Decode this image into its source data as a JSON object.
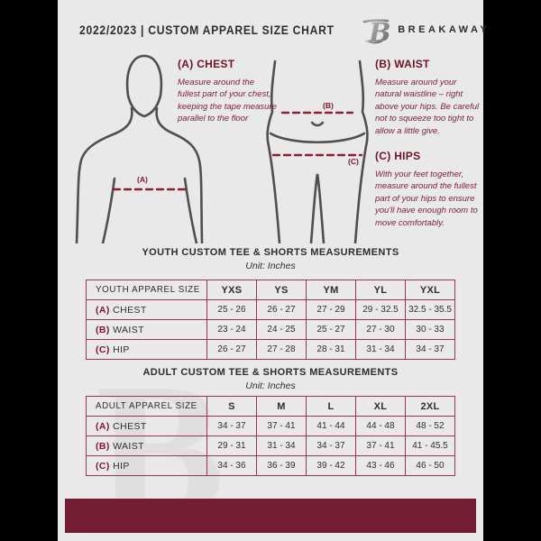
{
  "colors": {
    "canvas_bg": "#000000",
    "page_bg": "#e9e9e9",
    "maroon_bar": "#741e35",
    "maroon_text": "#701228",
    "table_border": "#95364c",
    "ink": "#2d2d2d",
    "figure_stroke": "#4f4f4f"
  },
  "header": {
    "title": "2022/2023  |  CUSTOM APPAREL SIZE CHART",
    "brand": "BREAKAWAY",
    "logo_icon": "breakaway-b-monogram"
  },
  "measure_guide": {
    "chest": {
      "heading": "(A) CHEST",
      "marker": "(A)",
      "body": "Measure around the fullest part of your chest, keeping the tape measure parallel to the floor"
    },
    "waist": {
      "heading": "(B) WAIST",
      "marker": "(B)",
      "body": "Measure around your natural waistline – right above your hips. Be careful not to squeeze too tight to allow a little give."
    },
    "hips": {
      "heading": "(C) HIPS",
      "marker": "(C)",
      "body": "With your feet together, measure around the fullest part of your hips to ensure you'll have enough room to move comfortably."
    }
  },
  "youth_table": {
    "title": "YOUTH CUSTOM TEE & SHORTS MEASUREMENTS",
    "unit": "Unit: Inches",
    "headers": [
      "YOUTH APPAREL SIZE",
      "YXS",
      "YS",
      "YM",
      "YL",
      "YXL"
    ],
    "rows": [
      {
        "prefix": "(A)",
        "label": "CHEST",
        "values": [
          "25 - 26",
          "26 - 27",
          "27 - 29",
          "29 - 32.5",
          "32.5 - 35.5"
        ]
      },
      {
        "prefix": "(B)",
        "label": "WAIST",
        "values": [
          "23 - 24",
          "24 - 25",
          "25 - 27",
          "27 - 30",
          "30 - 33"
        ]
      },
      {
        "prefix": "(C)",
        "label": "HIP",
        "values": [
          "26 - 27",
          "27 - 28",
          "28 - 31",
          "31 - 34",
          "34 - 37"
        ]
      }
    ]
  },
  "adult_table": {
    "title": "ADULT CUSTOM TEE & SHORTS MEASUREMENTS",
    "unit": "Unit: Inches",
    "headers": [
      "ADULT APPAREL SIZE",
      "S",
      "M",
      "L",
      "XL",
      "2XL"
    ],
    "rows": [
      {
        "prefix": "(A)",
        "label": "CHEST",
        "values": [
          "34 - 37",
          "37 - 41",
          "41 - 44",
          "44 - 48",
          "48 - 52"
        ]
      },
      {
        "prefix": "(B)",
        "label": "WAIST",
        "values": [
          "29 - 31",
          "31 - 34",
          "34 - 37",
          "37 - 41",
          "41 - 45.5"
        ]
      },
      {
        "prefix": "(C)",
        "label": "HIP",
        "values": [
          "34 - 36",
          "36 - 39",
          "39 - 42",
          "43 - 46",
          "46 - 50"
        ]
      }
    ]
  },
  "watermark": "B"
}
